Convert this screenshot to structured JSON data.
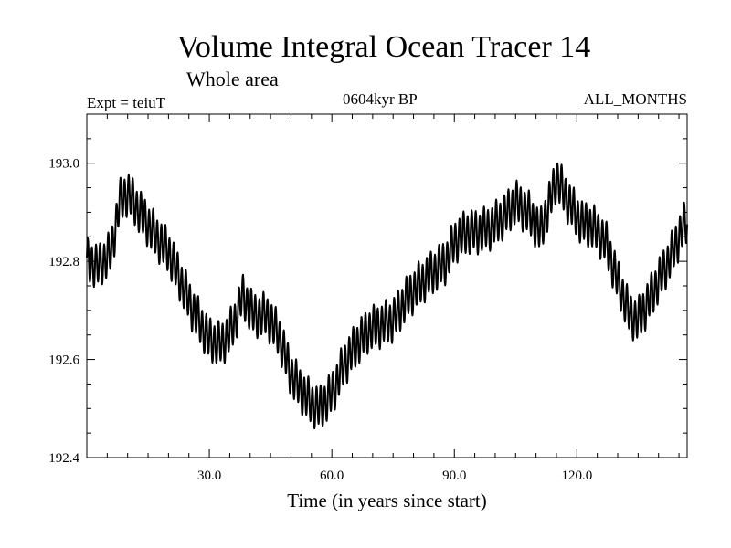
{
  "header": {
    "title": "Volume Integral Ocean Tracer 14",
    "subtitle": "Whole area",
    "expt": "Expt = teiuT",
    "period": "0604kyr BP",
    "months": "ALL_MONTHS"
  },
  "chart_data": {
    "type": "line",
    "title": "Volume Integral Ocean Tracer 14",
    "subtitle": "Whole area",
    "xlabel": "Time (in years since start)",
    "ylabel": "",
    "xlim": [
      0,
      147
    ],
    "ylim": [
      192.4,
      193.1
    ],
    "x_ticks": [
      30,
      60,
      90,
      120
    ],
    "x_tick_labels": [
      "30.0",
      "60.0",
      "90.0",
      "120.0"
    ],
    "y_ticks": [
      192.4,
      192.6,
      192.8,
      193.0
    ],
    "y_tick_labels": [
      "192.4",
      "192.6",
      "192.8",
      "193.0"
    ],
    "grid": false,
    "seasonal_cycle_amplitude": 0.04,
    "series": [
      {
        "x": [
          0,
          3,
          6,
          8,
          10,
          13,
          17,
          20,
          23,
          26,
          30,
          33,
          36,
          38,
          41,
          44,
          47,
          50,
          53,
          55,
          57,
          60,
          63,
          66,
          69,
          72,
          75,
          78,
          81,
          85,
          88,
          90,
          93,
          96,
          99,
          102,
          105,
          108,
          111,
          113,
          115,
          118,
          121,
          124,
          127,
          130,
          133,
          135,
          137,
          140,
          143,
          146,
          147
        ],
        "values": [
          192.8,
          192.79,
          192.82,
          192.92,
          192.94,
          192.9,
          192.85,
          192.82,
          192.76,
          192.7,
          192.64,
          192.63,
          192.67,
          192.73,
          192.69,
          192.69,
          192.65,
          192.57,
          192.53,
          192.51,
          192.5,
          192.53,
          192.59,
          192.63,
          192.66,
          192.67,
          192.68,
          192.72,
          192.75,
          192.78,
          192.8,
          192.84,
          192.86,
          192.86,
          192.87,
          192.89,
          192.92,
          192.9,
          192.86,
          192.91,
          192.97,
          192.92,
          192.88,
          192.87,
          192.84,
          192.76,
          192.69,
          192.68,
          192.71,
          192.76,
          192.81,
          192.87,
          192.88
        ]
      }
    ]
  }
}
